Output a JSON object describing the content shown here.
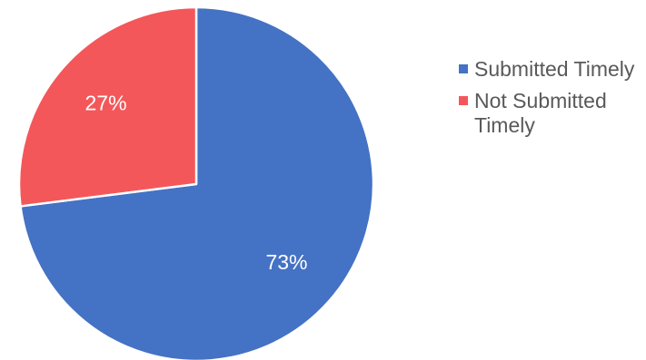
{
  "chart_data": {
    "type": "pie",
    "categories": [
      "Submitted Timely",
      "Not Submitted Timely"
    ],
    "values": [
      73,
      27
    ],
    "value_labels": [
      "73%",
      "27%"
    ],
    "colors": [
      "#4472C4",
      "#F4575A"
    ],
    "title": "",
    "legend_position": "right"
  }
}
